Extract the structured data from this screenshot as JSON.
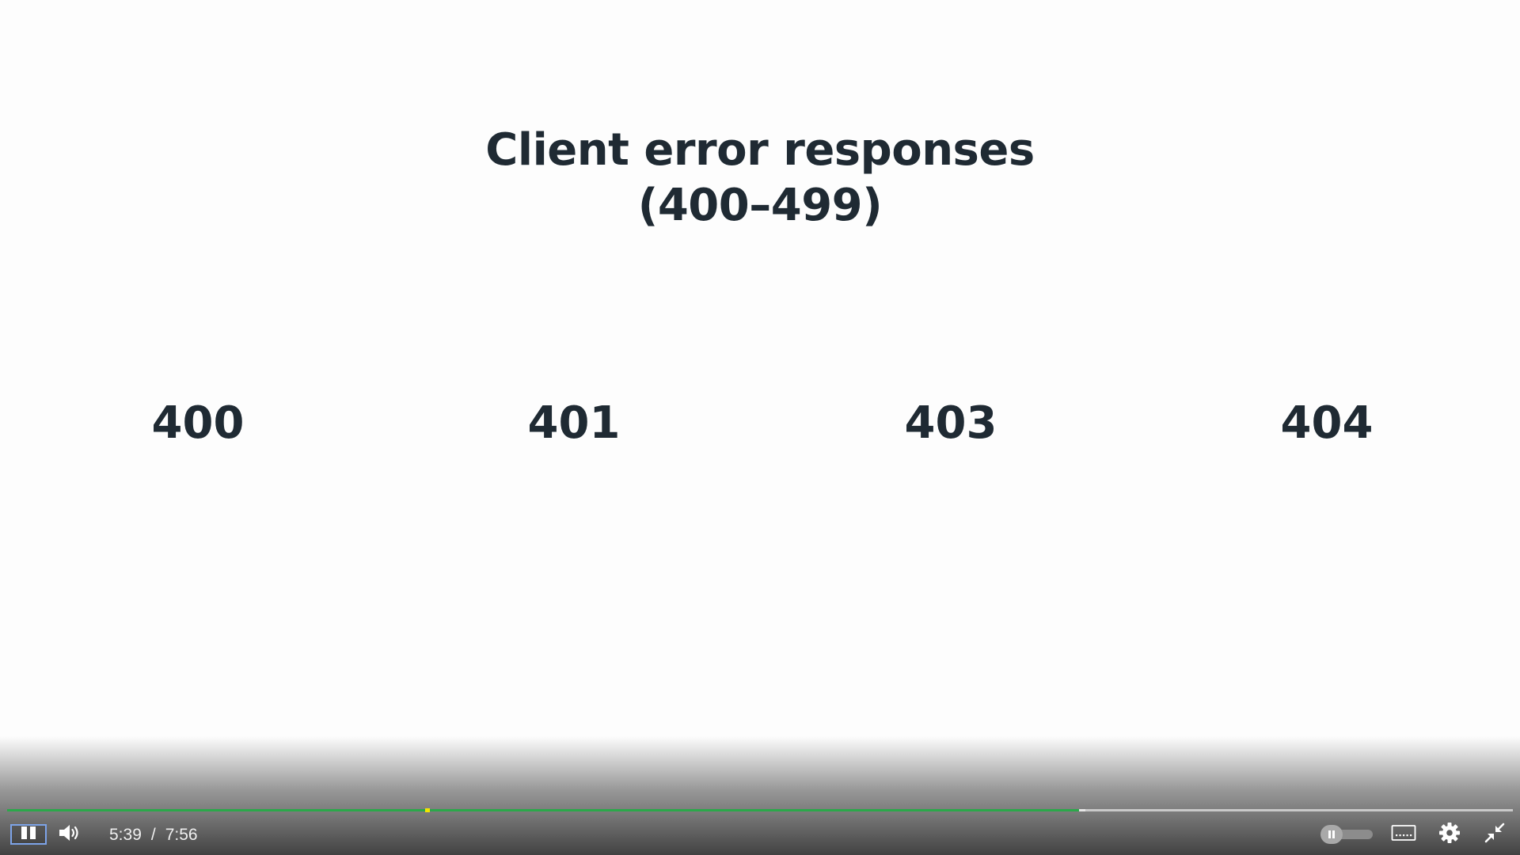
{
  "slide": {
    "title_line1": "Client error responses",
    "title_line2": "(400–499)",
    "codes": [
      "400",
      "401",
      "403",
      "404"
    ]
  },
  "player": {
    "current_time": "5:39",
    "time_separator": "/",
    "duration": "7:56",
    "progress_percent": 71.2,
    "buffered_percent": 71.6,
    "marker_percent": 27.9,
    "autoplay_toggle_state": "paused",
    "icons": {
      "play_pause": "pause-icon",
      "volume": "volume-icon",
      "toggle": "pause-icon",
      "captions": "captions-icon",
      "settings": "gear-icon",
      "exit_fullscreen": "exit-fullscreen-icon"
    },
    "colors": {
      "played": "#2ba84a",
      "marker": "#f2e600",
      "focus_outline": "#7da3e8",
      "slide_text": "#1f2a33"
    }
  }
}
